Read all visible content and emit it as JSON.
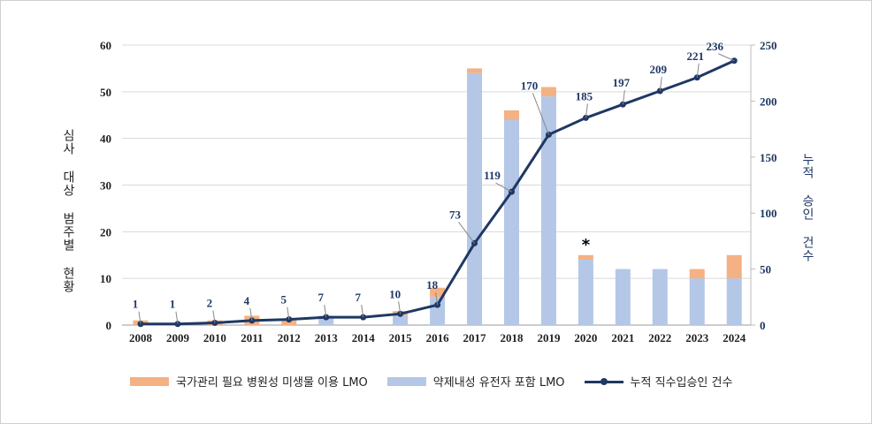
{
  "chart_data": {
    "type": "bar",
    "categories": [
      "2008",
      "2009",
      "2010",
      "2011",
      "2012",
      "2013",
      "2014",
      "2015",
      "2016",
      "2017",
      "2018",
      "2019",
      "2020",
      "2021",
      "2022",
      "2023",
      "2024"
    ],
    "series": [
      {
        "name": "약제내성 유전자 포함 LMO",
        "axis": "left",
        "color": "#b4c7e7",
        "values": [
          0,
          0,
          0,
          0,
          0,
          2,
          0,
          2,
          6,
          54,
          44,
          49,
          14,
          12,
          12,
          10,
          10
        ]
      },
      {
        "name": "국가관리 필요 병원성 미생물 이용 LMO",
        "axis": "left",
        "color": "#f4b183",
        "values": [
          1,
          0,
          1,
          2,
          1,
          0,
          0,
          1,
          2,
          1,
          2,
          2,
          1,
          0,
          0,
          2,
          5
        ]
      },
      {
        "name": "누적 직수입승인 건수",
        "type": "line",
        "axis": "right",
        "color": "#1f3864",
        "values": [
          1,
          1,
          2,
          4,
          5,
          7,
          7,
          10,
          18,
          73,
          119,
          170,
          185,
          197,
          209,
          221,
          236
        ]
      }
    ],
    "ylabel": "심사 대상 범주별 현황",
    "y2label": "누적 승인 건수",
    "ylim": [
      0,
      60
    ],
    "yticks": [
      0,
      10,
      20,
      30,
      40,
      50,
      60
    ],
    "y2lim": [
      0,
      250
    ],
    "y2ticks": [
      0,
      50,
      100,
      150,
      200,
      250
    ],
    "annotations": [
      {
        "category": "2020",
        "text": "*"
      }
    ],
    "grid": true,
    "legend": "bottom",
    "stacked": true
  }
}
